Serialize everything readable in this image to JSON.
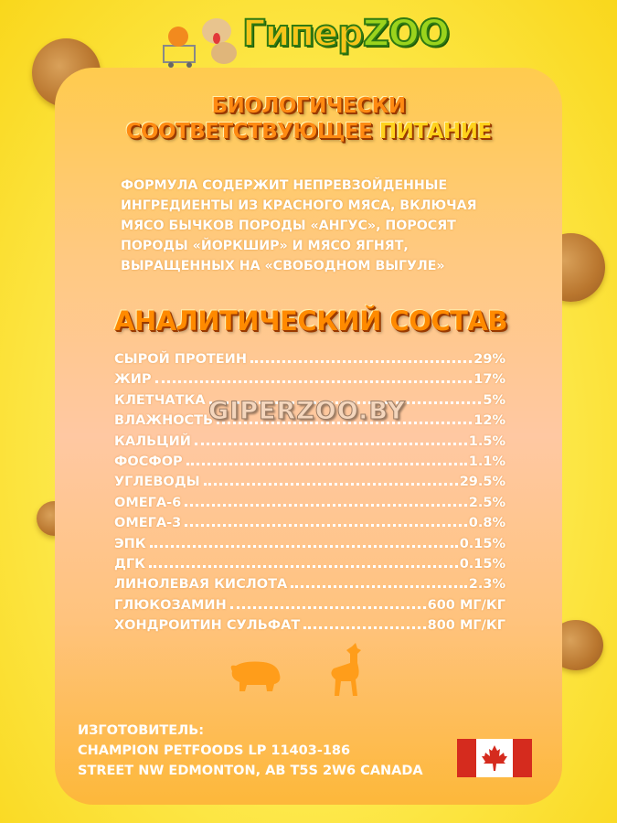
{
  "logo": {
    "text_part1": "Гипер",
    "text_part2": "ZOO"
  },
  "headline": {
    "line1": "Биологически",
    "line2a": "соответствующее",
    "line2b": "питание"
  },
  "intro": "Формула содержит непревзойденные ингредиенты из красного мяса, включая мясо бычков породы «Ангус», поросят породы «Йоркшир» и мясо ягнят, выращенных на «свободном выгуле»",
  "analysis": {
    "title": "Аналитический состав",
    "rows": [
      {
        "name": "Сырой протеин",
        "value": "29%"
      },
      {
        "name": "Жир",
        "value": "17%"
      },
      {
        "name": "Клетчатка",
        "value": "5%"
      },
      {
        "name": "Влажность",
        "value": "12%"
      },
      {
        "name": "Кальций",
        "value": "1.5%"
      },
      {
        "name": "Фосфор",
        "value": "1.1%"
      },
      {
        "name": "Углеводы",
        "value": "29.5%"
      },
      {
        "name": "Омега-6",
        "value": "2.5%"
      },
      {
        "name": "Омега-3",
        "value": "0.8%"
      },
      {
        "name": "ЭПК",
        "value": "0.15%"
      },
      {
        "name": "ДГК",
        "value": "0.15%"
      },
      {
        "name": "Линолевая кислота",
        "value": "2.3%"
      },
      {
        "name": "Глюкозамин",
        "value": "600 мг/кг"
      },
      {
        "name": "Хондроитин сульфат",
        "value": "800 мг/кг"
      }
    ]
  },
  "watermark": "GIPERZOO.BY",
  "manufacturer": {
    "label": "Изготовитель:",
    "line1": "Champion Petfoods LP 11403-186",
    "line2": "Street NW Edmonton, AB T5S 2W6 Canada"
  },
  "colors": {
    "accent": "#ff8a12",
    "flag_red": "#d52b1e",
    "background": "#fde84a"
  },
  "icons": [
    "pig-icon",
    "deer-icon",
    "canada-flag-icon"
  ]
}
